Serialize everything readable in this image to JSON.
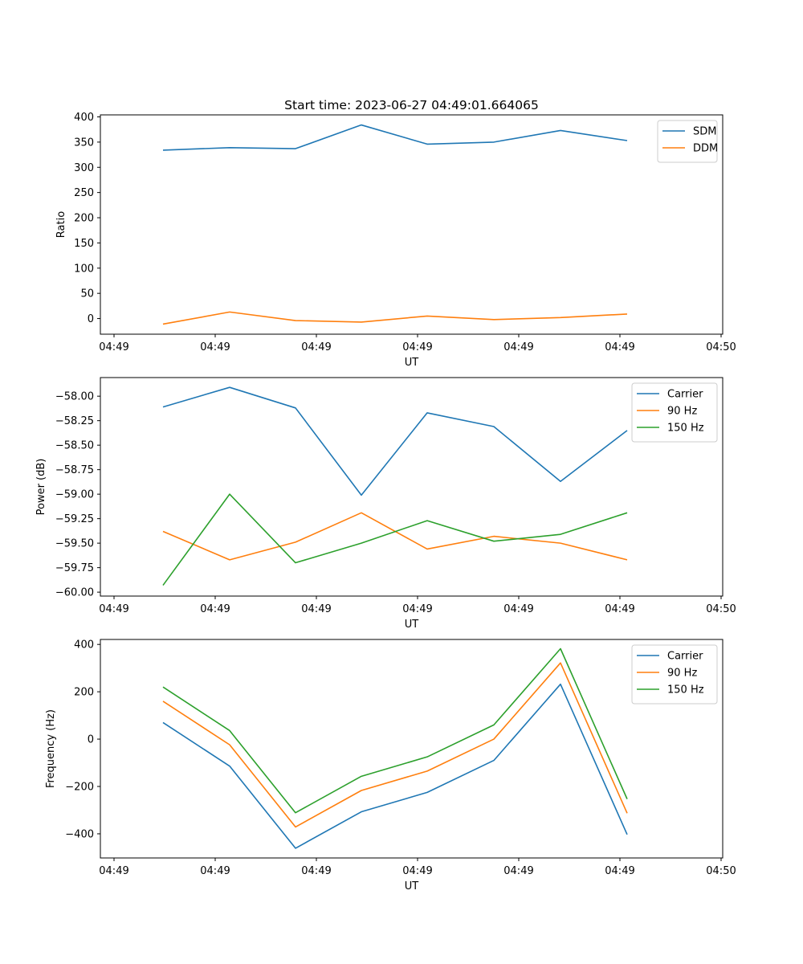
{
  "figure": {
    "title": "Start time: 2023-06-27 04:49:01.664065"
  },
  "chart_data": [
    {
      "type": "line",
      "title": "Start time: 2023-06-27 04:49:01.664065",
      "xlabel": "UT",
      "ylabel": "Ratio",
      "x_tick_labels": [
        "04:49",
        "04:49",
        "04:49",
        "04:49",
        "04:49",
        "04:49",
        "04:49"
      ],
      "x_edge_tick_label": "04:50",
      "y_ticks": [
        0,
        50,
        100,
        150,
        200,
        250,
        300,
        350,
        400
      ],
      "y_tick_labels": [
        "0",
        "50",
        "100",
        "150",
        "200",
        "250",
        "300",
        "350",
        "400"
      ],
      "ylim": [
        -31,
        404
      ],
      "legend_position": "upper right",
      "series": [
        {
          "name": "SDM",
          "color": "#1f77b4",
          "values": [
            334,
            339,
            337,
            384,
            346,
            350,
            373,
            353
          ]
        },
        {
          "name": "DDM",
          "color": "#ff7f0e",
          "values": [
            -11,
            13,
            -4,
            -7,
            5,
            -2,
            2,
            9
          ]
        }
      ]
    },
    {
      "type": "line",
      "xlabel": "UT",
      "ylabel": "Power (dB)",
      "x_tick_labels": [
        "04:49",
        "04:49",
        "04:49",
        "04:49",
        "04:49",
        "04:49",
        "04:49"
      ],
      "x_edge_tick_label": "04:50",
      "y_ticks": [
        -60.0,
        -59.75,
        -59.5,
        -59.25,
        -59.0,
        -58.75,
        -58.5,
        -58.25,
        -58.0
      ],
      "y_tick_labels": [
        "−60.00",
        "−59.75",
        "−59.50",
        "−59.25",
        "−59.00",
        "−58.75",
        "−58.50",
        "−58.25",
        "−58.00"
      ],
      "ylim": [
        -60.04,
        -57.81
      ],
      "legend_position": "upper right",
      "series": [
        {
          "name": "Carrier",
          "color": "#1f77b4",
          "values": [
            -58.11,
            -57.91,
            -58.12,
            -59.01,
            -58.17,
            -58.31,
            -58.87,
            -58.35
          ]
        },
        {
          "name": "90 Hz",
          "color": "#ff7f0e",
          "values": [
            -59.38,
            -59.67,
            -59.49,
            -59.19,
            -59.56,
            -59.43,
            -59.5,
            -59.67
          ]
        },
        {
          "name": "150 Hz",
          "color": "#2ca02c",
          "values": [
            -59.93,
            -59.0,
            -59.7,
            -59.5,
            -59.27,
            -59.48,
            -59.41,
            -59.19
          ]
        }
      ]
    },
    {
      "type": "line",
      "xlabel": "UT",
      "ylabel": "Frequency (Hz)",
      "x_tick_labels": [
        "04:49",
        "04:49",
        "04:49",
        "04:49",
        "04:49",
        "04:49",
        "04:49"
      ],
      "x_edge_tick_label": "04:50",
      "y_ticks": [
        -400,
        -200,
        0,
        200,
        400
      ],
      "y_tick_labels": [
        "−400",
        "−200",
        "0",
        "200",
        "400"
      ],
      "ylim": [
        -502,
        421
      ],
      "legend_position": "upper right",
      "series": [
        {
          "name": "Carrier",
          "color": "#1f77b4",
          "values": [
            70,
            -114,
            -461,
            -307,
            -225,
            -90,
            232,
            -403
          ]
        },
        {
          "name": "90 Hz",
          "color": "#ff7f0e",
          "values": [
            160,
            -24,
            -371,
            -217,
            -135,
            0,
            322,
            -313
          ]
        },
        {
          "name": "150 Hz",
          "color": "#2ca02c",
          "values": [
            220,
            36,
            -311,
            -157,
            -75,
            60,
            382,
            -253
          ]
        }
      ]
    }
  ]
}
